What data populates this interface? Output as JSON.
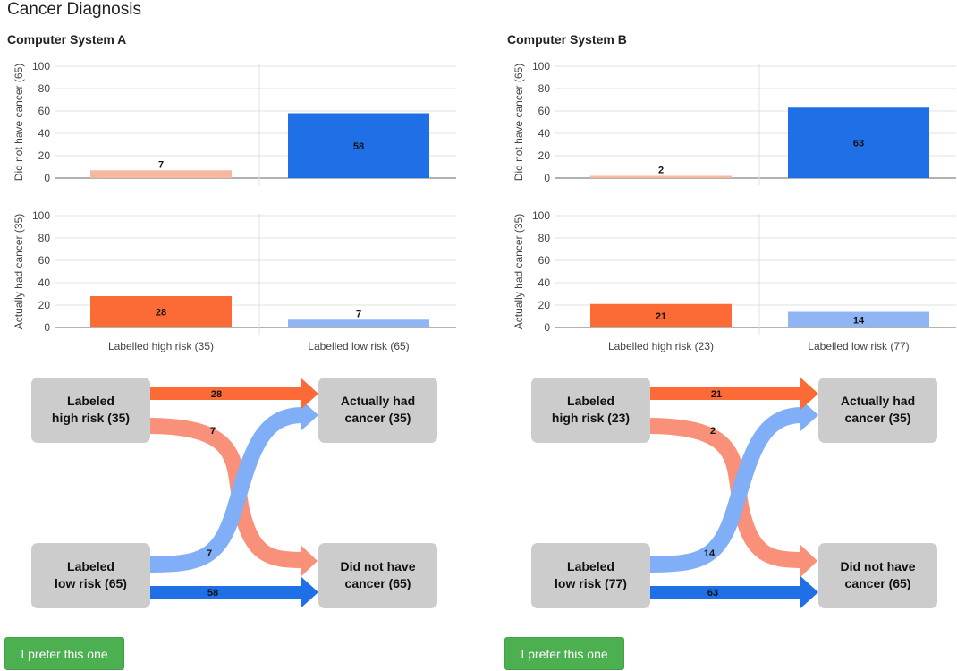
{
  "page": {
    "title": "Cancer Diagnosis"
  },
  "colors": {
    "high_risk_no_cancer": "#f8b8a0",
    "high_risk_cancer": "#fc6a35",
    "low_risk_no_cancer": "#1f6fe6",
    "low_risk_cancer": "#8fb5f5",
    "flow_high_to_no_cancer": "#f9907a",
    "flow_low_to_cancer": "#80aff7",
    "node": "#cccccc",
    "button": "#4caf50"
  },
  "systems": [
    {
      "title": "Computer System A",
      "button_label": "I prefer this one",
      "chart_data": {
        "type": "bar",
        "categories": [
          "Labelled high risk (35)",
          "Labelled low risk (65)"
        ],
        "ylim": [
          0,
          100
        ],
        "yticks": [
          0,
          20,
          40,
          60,
          80,
          100
        ],
        "grid": true,
        "panels": [
          {
            "ylabel": "Did not have cancer (65)",
            "values": [
              7,
              58
            ]
          },
          {
            "ylabel": "Actually had cancer (35)",
            "values": [
              28,
              7
            ]
          }
        ]
      },
      "diagram": {
        "nodes": {
          "high_risk": [
            "Labeled",
            "high risk (35)"
          ],
          "low_risk": [
            "Labeled",
            "low risk (65)"
          ],
          "had_cancer": [
            "Actually had",
            "cancer (35)"
          ],
          "no_cancer": [
            "Did not have",
            "cancer (65)"
          ]
        },
        "flows": {
          "high_to_cancer": 28,
          "high_to_no_cancer": 7,
          "low_to_cancer": 7,
          "low_to_no_cancer": 58
        }
      }
    },
    {
      "title": "Computer System B",
      "button_label": "I prefer this one",
      "chart_data": {
        "type": "bar",
        "categories": [
          "Labelled high risk (23)",
          "Labelled low risk (77)"
        ],
        "ylim": [
          0,
          100
        ],
        "yticks": [
          0,
          20,
          40,
          60,
          80,
          100
        ],
        "grid": true,
        "panels": [
          {
            "ylabel": "Did not have cancer (65)",
            "values": [
              2,
              63
            ]
          },
          {
            "ylabel": "Actually had cancer (35)",
            "values": [
              21,
              14
            ]
          }
        ]
      },
      "diagram": {
        "nodes": {
          "high_risk": [
            "Labeled",
            "high risk (23)"
          ],
          "low_risk": [
            "Labeled",
            "low risk (77)"
          ],
          "had_cancer": [
            "Actually had",
            "cancer (35)"
          ],
          "no_cancer": [
            "Did not have",
            "cancer (65)"
          ]
        },
        "flows": {
          "high_to_cancer": 21,
          "high_to_no_cancer": 2,
          "low_to_cancer": 14,
          "low_to_no_cancer": 63
        }
      }
    }
  ]
}
